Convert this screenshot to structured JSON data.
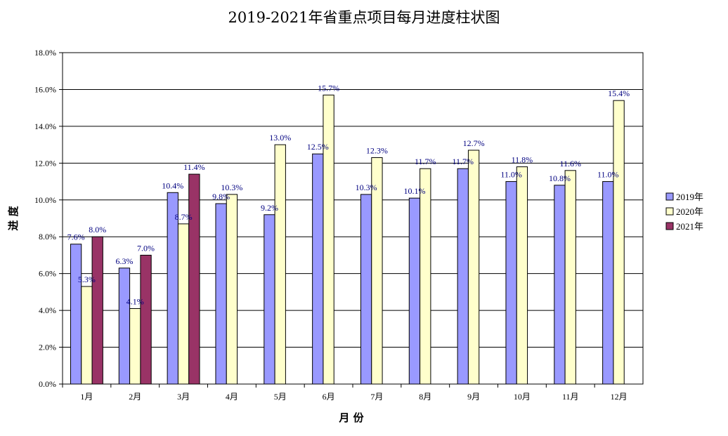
{
  "chart_data": {
    "type": "bar",
    "title": "2019-2021年省重点项目每月进度柱状图",
    "xlabel": "月 份",
    "ylabel": "进 度",
    "ylim": [
      0,
      18
    ],
    "yticks": [
      "0.0%",
      "2.0%",
      "4.0%",
      "6.0%",
      "8.0%",
      "10.0%",
      "12.0%",
      "14.0%",
      "16.0%",
      "18.0%"
    ],
    "grid": true,
    "legend": "right",
    "categories": [
      "1月",
      "2月",
      "3月",
      "4月",
      "5月",
      "6月",
      "7月",
      "8月",
      "9月",
      "10月",
      "11月",
      "12月"
    ],
    "series": [
      {
        "name": "2019年",
        "color": "#9999ff",
        "values": [
          7.6,
          6.3,
          10.4,
          9.8,
          9.2,
          12.5,
          10.3,
          10.1,
          11.7,
          11.0,
          10.8,
          11.0
        ],
        "labels": [
          "7.6%",
          "6.3%",
          "10.4%",
          "9.8%",
          "9.2%",
          "12.5%",
          "10.3%",
          "10.1%",
          "11.7%",
          "11.0%",
          "10.8%",
          "11.0%"
        ]
      },
      {
        "name": "2020年",
        "color": "#ffffcc",
        "values": [
          5.3,
          4.1,
          8.7,
          10.3,
          13.0,
          15.7,
          12.3,
          11.7,
          12.7,
          11.8,
          11.6,
          15.4
        ],
        "labels": [
          "5.3%",
          "4.1%",
          "8.7%",
          "10.3%",
          "13.0%",
          "15.7%",
          "12.3%",
          "11.7%",
          "12.7%",
          "11.8%",
          "11.6%",
          "15.4%"
        ]
      },
      {
        "name": "2021年",
        "color": "#993366",
        "values": [
          8.0,
          7.0,
          11.4,
          null,
          null,
          null,
          null,
          null,
          null,
          null,
          null,
          null
        ],
        "labels": [
          "8.0%",
          "7.0%",
          "11.4%",
          null,
          null,
          null,
          null,
          null,
          null,
          null,
          null,
          null
        ]
      }
    ]
  }
}
